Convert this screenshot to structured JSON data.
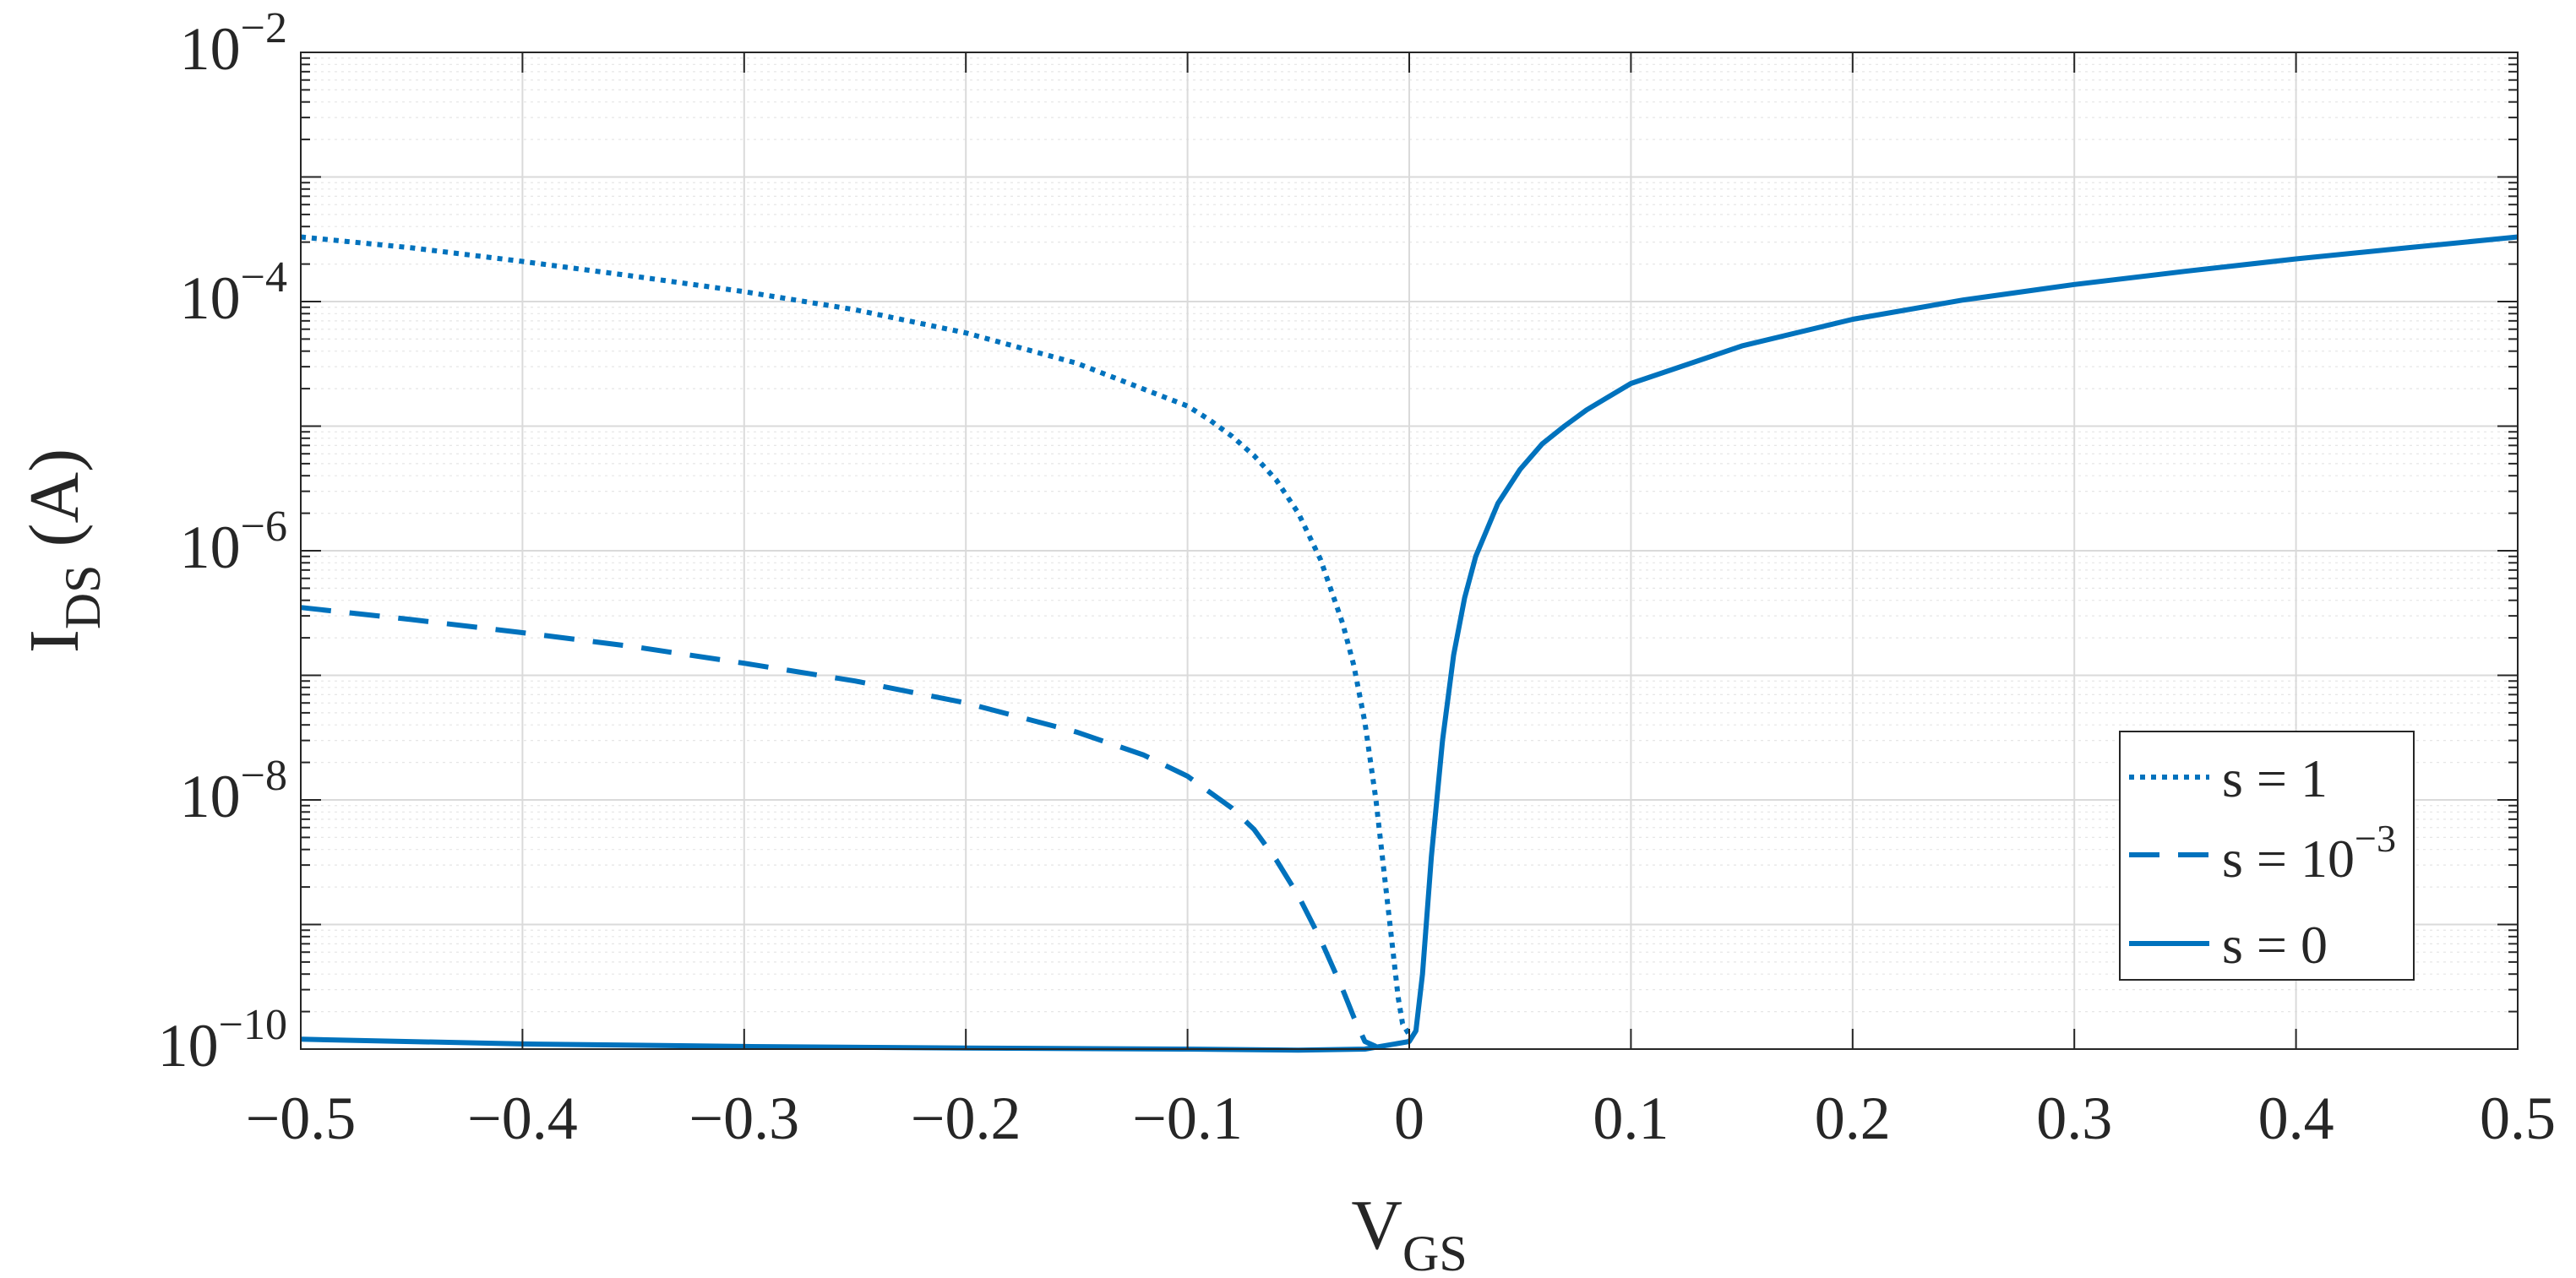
{
  "chart_data": {
    "type": "line",
    "title": "",
    "xlabel": {
      "main": "V",
      "sub": "GS"
    },
    "ylabel": {
      "main": "I",
      "sub": "DS",
      "suffix": " (A)"
    },
    "xlim": [
      -0.5,
      0.5
    ],
    "ylim": [
      1e-10,
      0.01
    ],
    "yscale": "log",
    "grid": true,
    "minor_grid": true,
    "line_color": "#0072BD",
    "x_ticks": [
      {
        "value": -0.5,
        "label": "−0.5"
      },
      {
        "value": -0.4,
        "label": "−0.4"
      },
      {
        "value": -0.3,
        "label": "−0.3"
      },
      {
        "value": -0.2,
        "label": "−0.2"
      },
      {
        "value": -0.1,
        "label": "−0.1"
      },
      {
        "value": 0,
        "label": "0"
      },
      {
        "value": 0.1,
        "label": "0.1"
      },
      {
        "value": 0.2,
        "label": "0.2"
      },
      {
        "value": 0.3,
        "label": "0.3"
      },
      {
        "value": 0.4,
        "label": "0.4"
      },
      {
        "value": 0.5,
        "label": "0.5"
      }
    ],
    "y_ticks": [
      {
        "value": 0.01,
        "base": "10",
        "exp": "−2"
      },
      {
        "value": 0.0001,
        "base": "10",
        "exp": "−4"
      },
      {
        "value": 1e-06,
        "base": "10",
        "exp": "−6"
      },
      {
        "value": 1e-08,
        "base": "10",
        "exp": "−8"
      },
      {
        "value": 1e-10,
        "base": "10",
        "exp": "−10"
      }
    ],
    "legend": {
      "position": "lower-right",
      "entries": [
        {
          "series": 0,
          "text": "s = 1",
          "sup": ""
        },
        {
          "series": 1,
          "text": "s = 10",
          "sup": "−3"
        },
        {
          "series": 2,
          "text": "s = 0",
          "sup": ""
        }
      ]
    },
    "series": [
      {
        "style": "dotted",
        "x": [
          -0.5,
          -0.45,
          -0.4,
          -0.35,
          -0.3,
          -0.25,
          -0.2,
          -0.15,
          -0.1,
          -0.09,
          -0.08,
          -0.07,
          -0.06,
          -0.05,
          -0.04,
          -0.03,
          -0.025,
          -0.02,
          -0.015,
          -0.01,
          -0.005,
          -0.003,
          0.0
        ],
        "y": [
          0.00033,
          0.00027,
          0.00021,
          0.00016,
          0.00012,
          8.6e-05,
          5.6e-05,
          3.2e-05,
          1.45e-05,
          1.12e-05,
          8.3e-06,
          5.8e-06,
          3.7e-06,
          2e-06,
          8.5e-07,
          2.6e-07,
          1.2e-07,
          4.2e-08,
          1e-08,
          1.6e-09,
          2.6e-10,
          1.6e-10,
          1.3e-10
        ]
      },
      {
        "style": "dashed",
        "x": [
          -0.5,
          -0.45,
          -0.4,
          -0.35,
          -0.3,
          -0.25,
          -0.2,
          -0.15,
          -0.12,
          -0.1,
          -0.08,
          -0.07,
          -0.06,
          -0.05,
          -0.04,
          -0.03,
          -0.025,
          -0.02,
          -0.015
        ],
        "y": [
          3.5e-07,
          2.8e-07,
          2.2e-07,
          1.7e-07,
          1.25e-07,
          9e-08,
          6e-08,
          3.5e-08,
          2.3e-08,
          1.55e-08,
          8.6e-09,
          5.8e-09,
          3.3e-09,
          1.7e-09,
          7.6e-10,
          3e-10,
          1.8e-10,
          1.15e-10,
          1.05e-10
        ]
      },
      {
        "style": "solid",
        "x": [
          -0.5,
          -0.4,
          -0.3,
          -0.2,
          -0.1,
          -0.05,
          -0.02,
          0.0,
          0.003,
          0.006,
          0.01,
          0.015,
          0.02,
          0.025,
          0.03,
          0.04,
          0.05,
          0.06,
          0.07,
          0.08,
          0.1,
          0.15,
          0.2,
          0.25,
          0.3,
          0.35,
          0.4,
          0.45,
          0.5
        ],
        "y": [
          1.2e-10,
          1.1e-10,
          1.05e-10,
          1.02e-10,
          1e-10,
          9.8e-11,
          1e-10,
          1.15e-10,
          1.4e-10,
          4e-10,
          3.5e-09,
          3e-08,
          1.45e-07,
          4.2e-07,
          9e-07,
          2.4e-06,
          4.5e-06,
          7.2e-06,
          1e-05,
          1.35e-05,
          2.2e-05,
          4.4e-05,
          7.2e-05,
          0.000103,
          0.000137,
          0.000175,
          0.00022,
          0.00027,
          0.00033
        ]
      }
    ]
  }
}
